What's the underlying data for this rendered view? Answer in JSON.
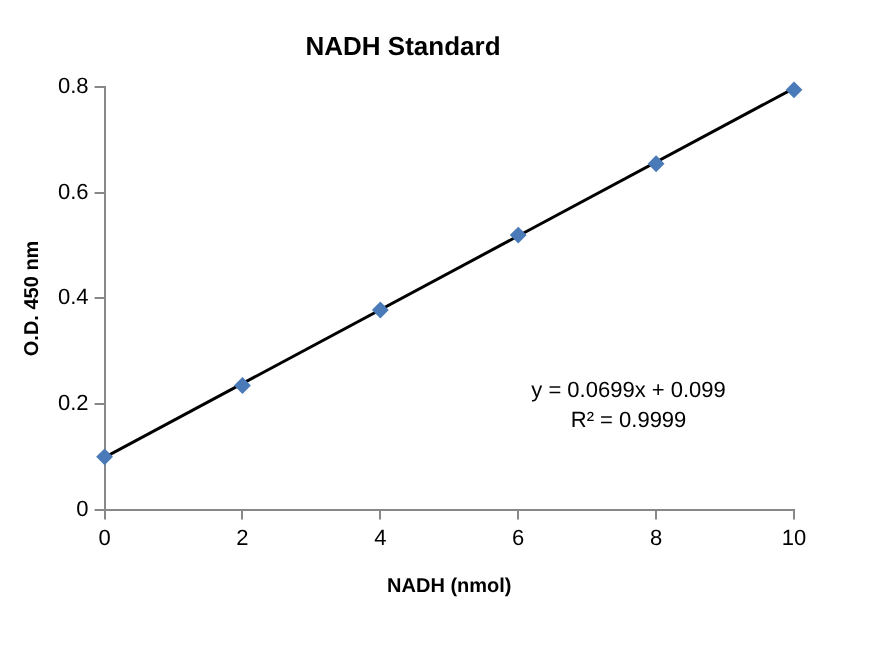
{
  "chart_data": {
    "type": "scatter",
    "title": "NADH Standard",
    "xlabel": "NADH (nmol)",
    "ylabel": "O.D. 450 nm",
    "series": [
      {
        "type": "scatter",
        "marker": "diamond",
        "color": "#4a7ab8",
        "x": [
          0,
          2,
          4,
          6,
          8,
          10
        ],
        "values": [
          0.1,
          0.235,
          0.378,
          0.52,
          0.655,
          0.795
        ]
      },
      {
        "type": "line",
        "marker": "none",
        "color": "#000000",
        "x": [
          0,
          10
        ],
        "values": [
          0.099,
          0.798
        ]
      }
    ],
    "xlim": [
      0,
      10
    ],
    "xticks": [
      0,
      2,
      4,
      6,
      8,
      10
    ],
    "ylim": [
      0,
      0.8
    ],
    "yticks": [
      0,
      0.2,
      0.4,
      0.6,
      0.8
    ],
    "annotations": [
      "y = 0.0699x + 0.099",
      "R² = 0.9999"
    ],
    "line_style": "solid",
    "grid": false,
    "legend": false
  }
}
